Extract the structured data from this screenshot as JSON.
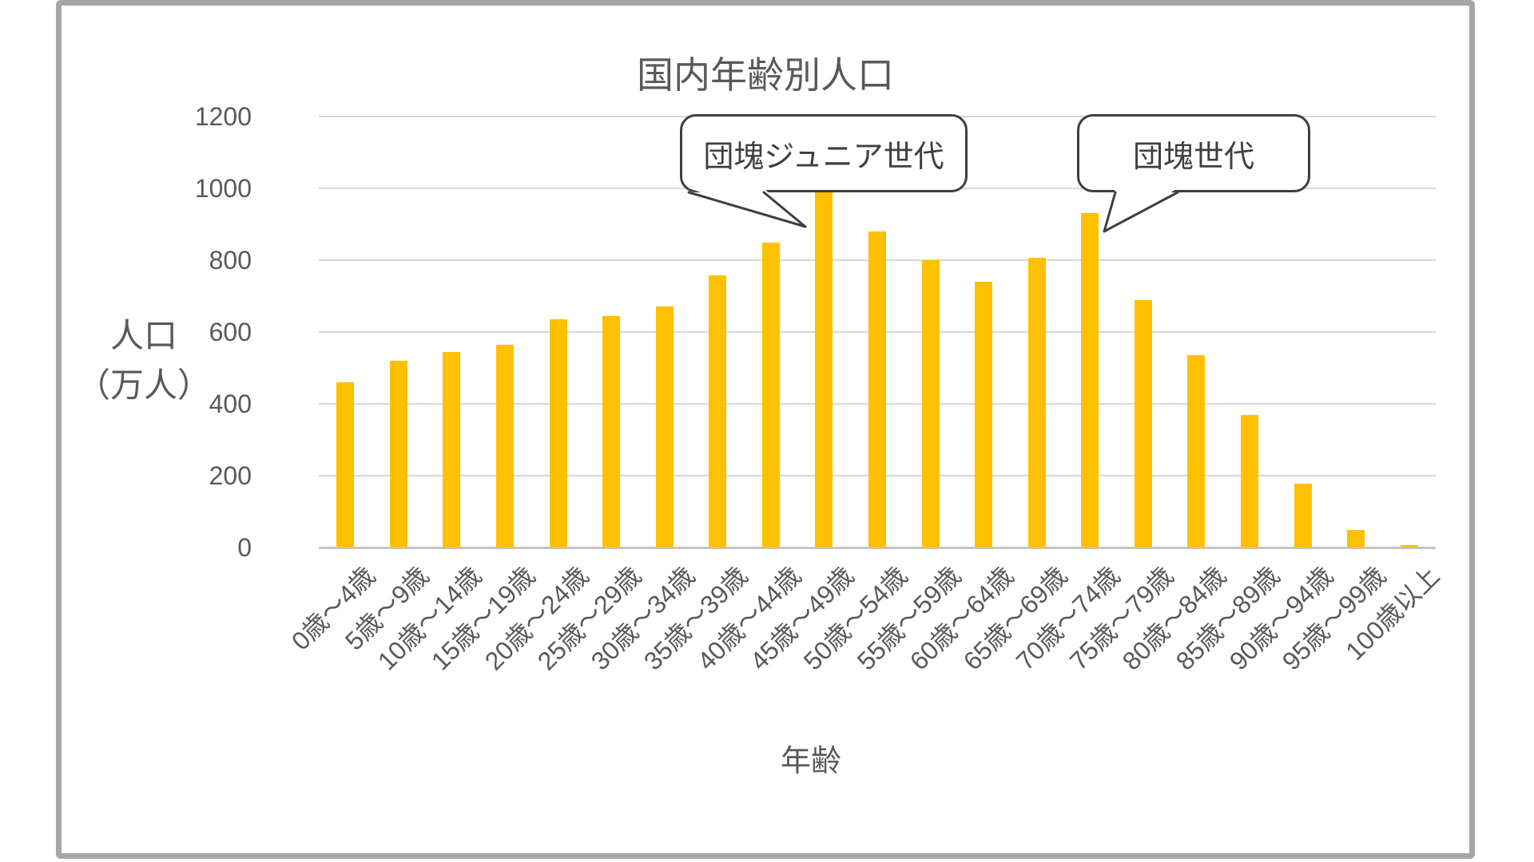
{
  "chart_data": {
    "type": "bar",
    "title": "国内年齢別人口",
    "xlabel": "年齢",
    "ylabel": "人口（万人）",
    "ylabel_lines": [
      "人口",
      "（万人）"
    ],
    "categories": [
      "0歳～4歳",
      "5歳～9歳",
      "10歳～14歳",
      "15歳～19歳",
      "20歳～24歳",
      "25歳～29歳",
      "30歳～34歳",
      "35歳～39歳",
      "40歳～44歳",
      "45歳～49歳",
      "50歳～54歳",
      "55歳～59歳",
      "60歳～64歳",
      "65歳～69歳",
      "70歳～74歳",
      "75歳～79歳",
      "80歳～84歳",
      "85歳～89歳",
      "90歳～94歳",
      "95歳～99歳",
      "100歳以上"
    ],
    "values": [
      460,
      520,
      545,
      565,
      635,
      645,
      672,
      757,
      848,
      988,
      879,
      800,
      739,
      807,
      932,
      688,
      535,
      369,
      178,
      49,
      7
    ],
    "yticks": [
      0,
      200,
      400,
      600,
      800,
      1000,
      1200
    ],
    "ylim": [
      0,
      1200
    ],
    "grid": true,
    "legend": "none",
    "bar_color": "#FFC000",
    "gridline_color": "#D9D9D9",
    "text_color": "#595959",
    "frame_color": "#A6A6A6",
    "annotations": [
      {
        "label": "団塊ジュニア世代",
        "target_category": "45歳～49歳",
        "target_value": 988
      },
      {
        "label": "団塊世代",
        "target_category": "70歳～74歳",
        "target_value": 932
      }
    ]
  }
}
